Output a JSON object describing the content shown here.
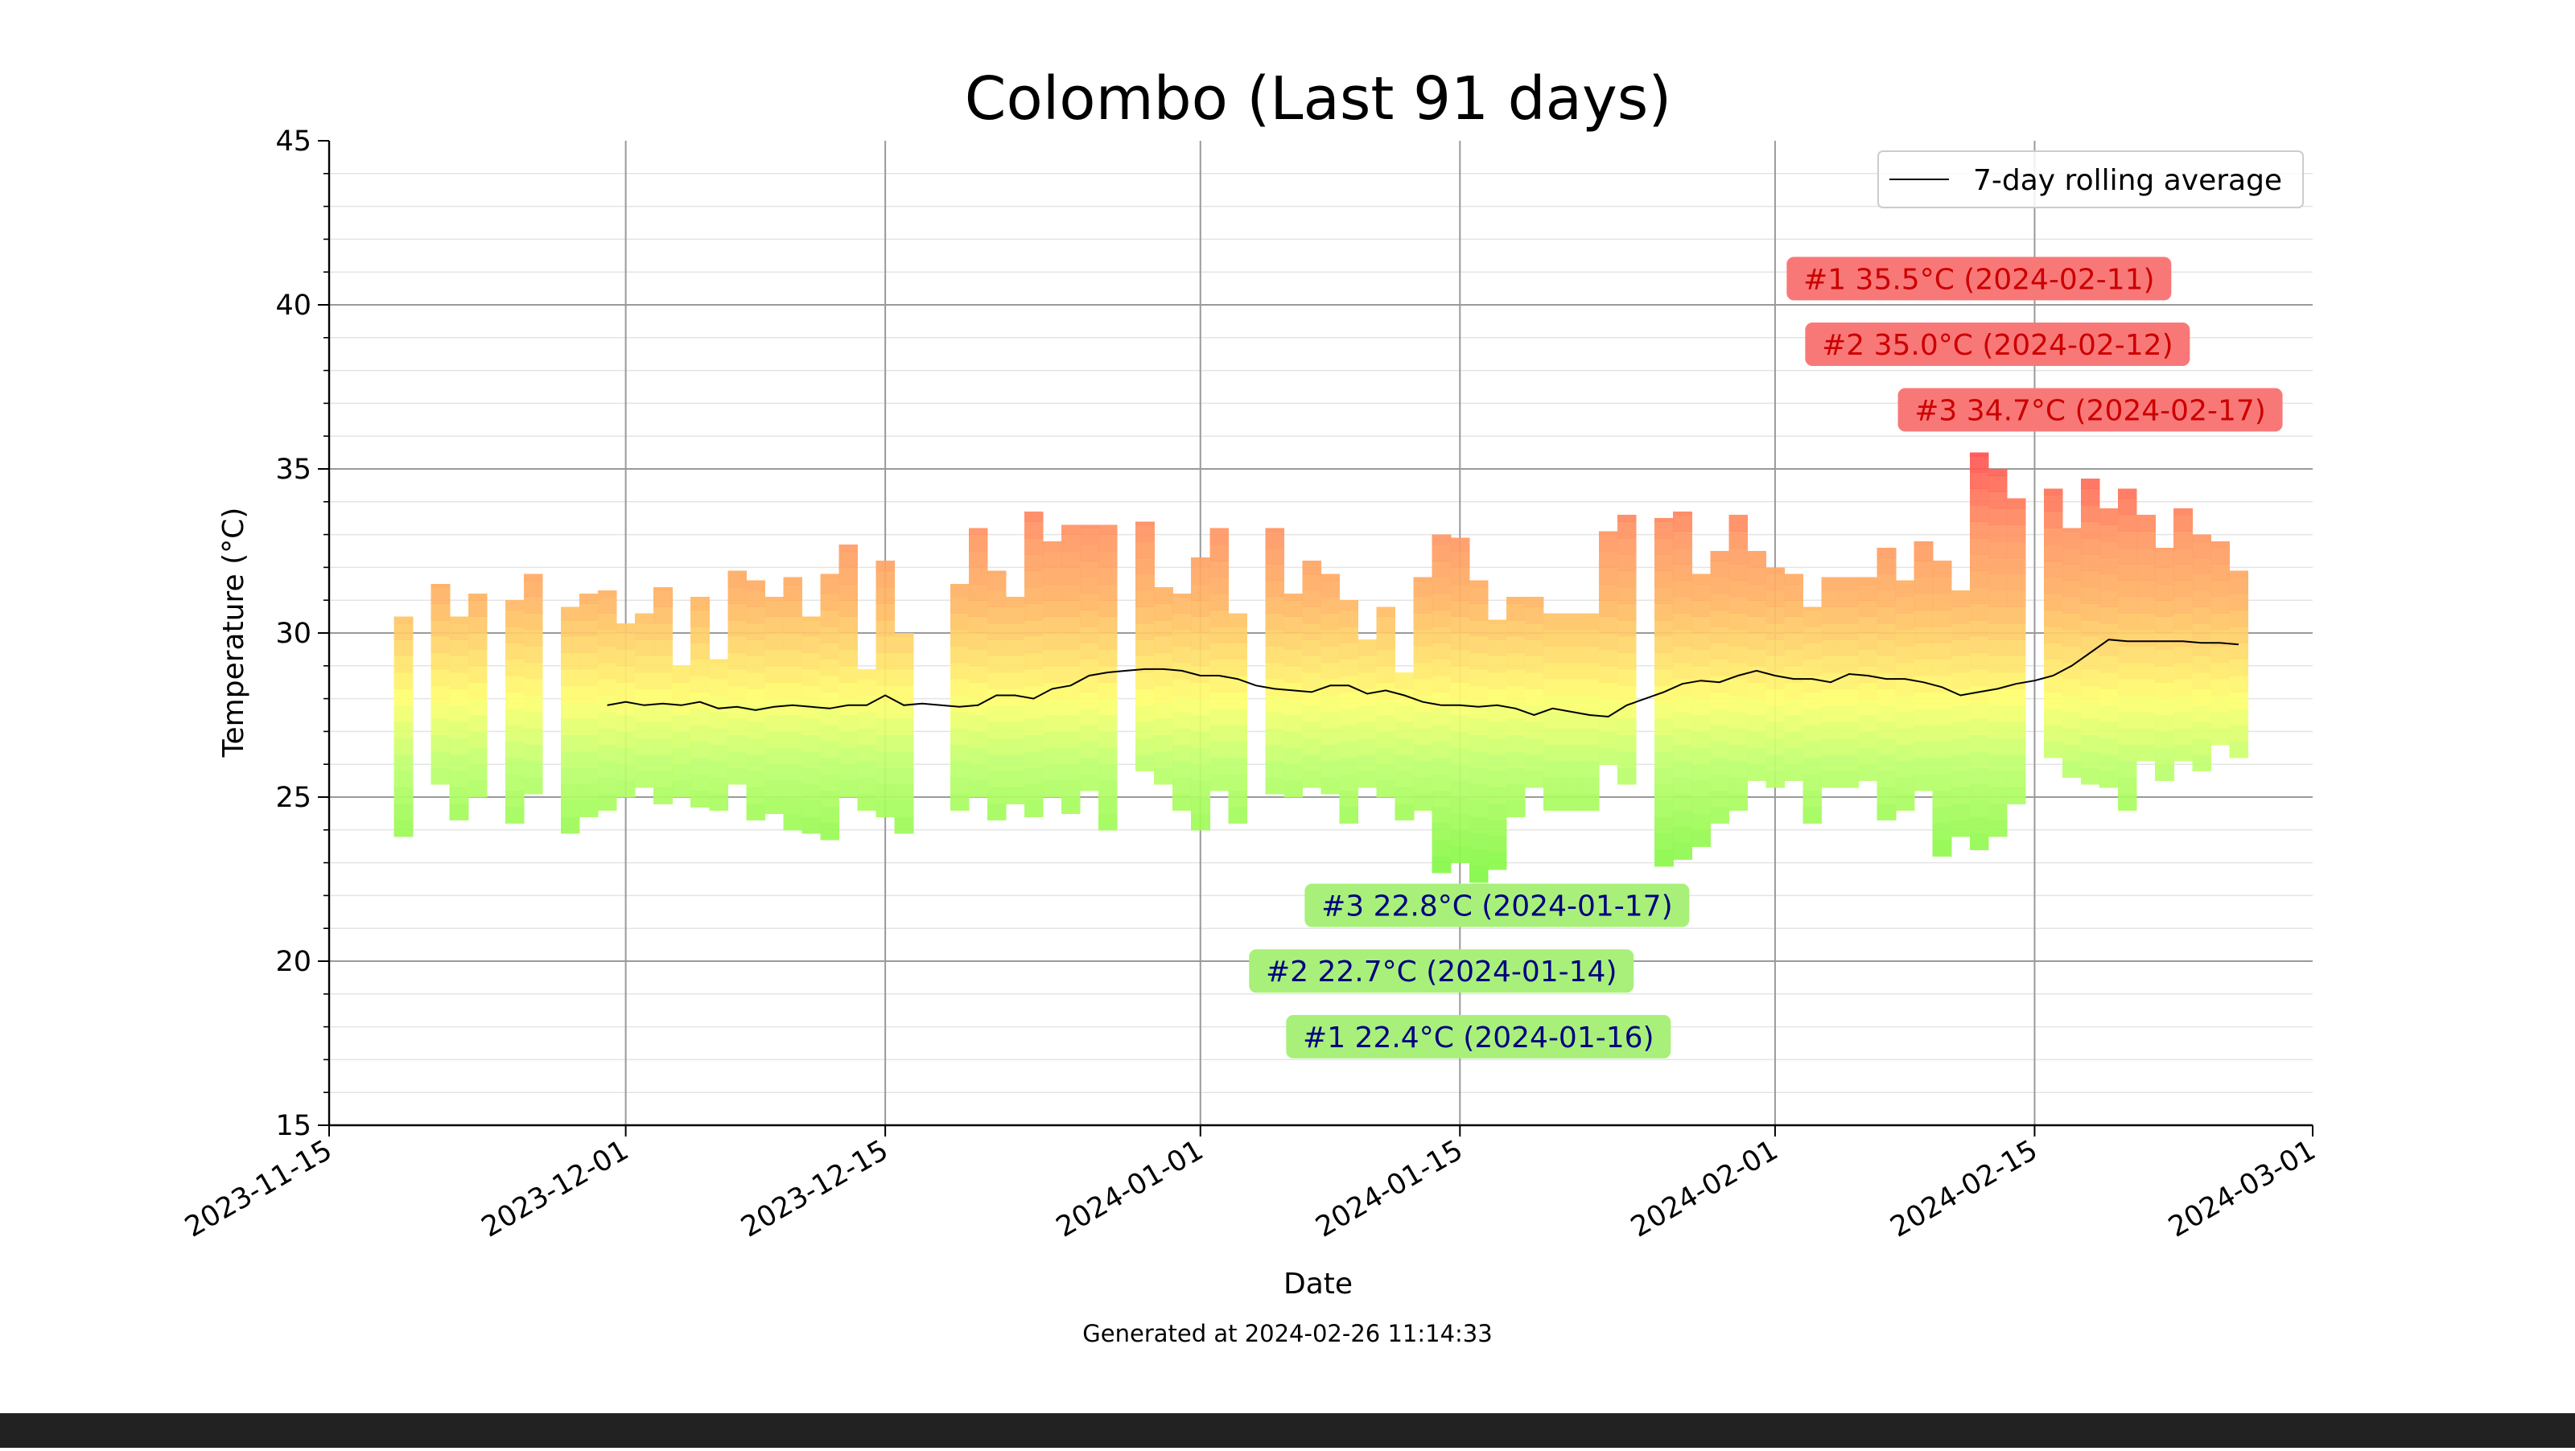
{
  "chart_data": {
    "type": "bar",
    "title": "Colombo (Last 91 days)",
    "xlabel": "Date",
    "ylabel": "Temperature (°C)",
    "xlim": [
      "2023-11-15",
      "2024-03-01"
    ],
    "ylim": [
      15,
      45
    ],
    "x_ticks": [
      "2023-11-15",
      "2023-12-01",
      "2023-12-15",
      "2024-01-01",
      "2024-01-15",
      "2024-02-01",
      "2024-02-15",
      "2024-03-01"
    ],
    "y_ticks": [
      15,
      20,
      25,
      30,
      35,
      40,
      45
    ],
    "grid": true,
    "legend": {
      "position": "top-right",
      "entries": [
        "7-day rolling average"
      ]
    },
    "bar_encoding": "daily min-to-max range, colored by temperature (green=cool, yellow=mild, orange/red=hot)",
    "daily_ranges": [
      {
        "date": "2023-11-19",
        "min": 23.8,
        "max": 30.5
      },
      {
        "date": "2023-11-21",
        "min": 25.4,
        "max": 31.5
      },
      {
        "date": "2023-11-22",
        "min": 24.3,
        "max": 30.5
      },
      {
        "date": "2023-11-23",
        "min": 25.0,
        "max": 31.2
      },
      {
        "date": "2023-11-25",
        "min": 24.2,
        "max": 31.0
      },
      {
        "date": "2023-11-26",
        "min": 25.1,
        "max": 31.8
      },
      {
        "date": "2023-11-28",
        "min": 23.9,
        "max": 30.8
      },
      {
        "date": "2023-11-29",
        "min": 24.4,
        "max": 31.2
      },
      {
        "date": "2023-11-30",
        "min": 24.6,
        "max": 31.3
      },
      {
        "date": "2023-12-01",
        "min": 25.0,
        "max": 30.3
      },
      {
        "date": "2023-12-02",
        "min": 25.3,
        "max": 30.6
      },
      {
        "date": "2023-12-03",
        "min": 24.8,
        "max": 31.4
      },
      {
        "date": "2023-12-04",
        "min": 25.0,
        "max": 29.0
      },
      {
        "date": "2023-12-05",
        "min": 24.7,
        "max": 31.1
      },
      {
        "date": "2023-12-06",
        "min": 24.6,
        "max": 29.2
      },
      {
        "date": "2023-12-07",
        "min": 25.4,
        "max": 31.9
      },
      {
        "date": "2023-12-08",
        "min": 24.3,
        "max": 31.6
      },
      {
        "date": "2023-12-09",
        "min": 24.5,
        "max": 31.1
      },
      {
        "date": "2023-12-10",
        "min": 24.0,
        "max": 31.7
      },
      {
        "date": "2023-12-11",
        "min": 23.9,
        "max": 30.5
      },
      {
        "date": "2023-12-12",
        "min": 23.7,
        "max": 31.8
      },
      {
        "date": "2023-12-13",
        "min": 25.0,
        "max": 32.7
      },
      {
        "date": "2023-12-14",
        "min": 24.6,
        "max": 28.9
      },
      {
        "date": "2023-12-15",
        "min": 24.4,
        "max": 32.2
      },
      {
        "date": "2023-12-16",
        "min": 23.9,
        "max": 30.0
      },
      {
        "date": "2023-12-19",
        "min": 24.6,
        "max": 31.5
      },
      {
        "date": "2023-12-20",
        "min": 25.0,
        "max": 33.2
      },
      {
        "date": "2023-12-21",
        "min": 24.3,
        "max": 31.9
      },
      {
        "date": "2023-12-22",
        "min": 24.8,
        "max": 31.1
      },
      {
        "date": "2023-12-23",
        "min": 24.4,
        "max": 33.7
      },
      {
        "date": "2023-12-24",
        "min": 25.0,
        "max": 32.8
      },
      {
        "date": "2023-12-25",
        "min": 24.5,
        "max": 33.3
      },
      {
        "date": "2023-12-26",
        "min": 25.2,
        "max": 33.3
      },
      {
        "date": "2023-12-27",
        "min": 24.0,
        "max": 33.3
      },
      {
        "date": "2023-12-29",
        "min": 25.8,
        "max": 33.4
      },
      {
        "date": "2023-12-30",
        "min": 25.4,
        "max": 31.4
      },
      {
        "date": "2023-12-31",
        "min": 24.6,
        "max": 31.2
      },
      {
        "date": "2024-01-01",
        "min": 24.0,
        "max": 32.3
      },
      {
        "date": "2024-01-02",
        "min": 25.2,
        "max": 33.2
      },
      {
        "date": "2024-01-03",
        "min": 24.2,
        "max": 30.6
      },
      {
        "date": "2024-01-05",
        "min": 25.1,
        "max": 33.2
      },
      {
        "date": "2024-01-06",
        "min": 25.0,
        "max": 31.2
      },
      {
        "date": "2024-01-07",
        "min": 25.3,
        "max": 32.2
      },
      {
        "date": "2024-01-08",
        "min": 25.1,
        "max": 31.8
      },
      {
        "date": "2024-01-09",
        "min": 24.2,
        "max": 31.0
      },
      {
        "date": "2024-01-10",
        "min": 25.3,
        "max": 29.8
      },
      {
        "date": "2024-01-11",
        "min": 25.0,
        "max": 30.8
      },
      {
        "date": "2024-01-12",
        "min": 24.3,
        "max": 28.8
      },
      {
        "date": "2024-01-13",
        "min": 24.6,
        "max": 31.7
      },
      {
        "date": "2024-01-14",
        "min": 22.7,
        "max": 33.0
      },
      {
        "date": "2024-01-15",
        "min": 23.0,
        "max": 32.9
      },
      {
        "date": "2024-01-16",
        "min": 22.4,
        "max": 31.6
      },
      {
        "date": "2024-01-17",
        "min": 22.8,
        "max": 30.4
      },
      {
        "date": "2024-01-18",
        "min": 24.4,
        "max": 31.1
      },
      {
        "date": "2024-01-19",
        "min": 25.3,
        "max": 31.1
      },
      {
        "date": "2024-01-20",
        "min": 24.6,
        "max": 30.6
      },
      {
        "date": "2024-01-21",
        "min": 24.6,
        "max": 30.6
      },
      {
        "date": "2024-01-22",
        "min": 24.6,
        "max": 30.6
      },
      {
        "date": "2024-01-23",
        "min": 26.0,
        "max": 33.1
      },
      {
        "date": "2024-01-24",
        "min": 25.4,
        "max": 33.6
      },
      {
        "date": "2024-01-26",
        "min": 22.9,
        "max": 33.5
      },
      {
        "date": "2024-01-27",
        "min": 23.1,
        "max": 33.7
      },
      {
        "date": "2024-01-28",
        "min": 23.5,
        "max": 31.8
      },
      {
        "date": "2024-01-29",
        "min": 24.2,
        "max": 32.5
      },
      {
        "date": "2024-01-30",
        "min": 24.6,
        "max": 33.6
      },
      {
        "date": "2024-01-31",
        "min": 25.5,
        "max": 32.5
      },
      {
        "date": "2024-02-01",
        "min": 25.3,
        "max": 32.0
      },
      {
        "date": "2024-02-02",
        "min": 25.5,
        "max": 31.8
      },
      {
        "date": "2024-02-03",
        "min": 24.2,
        "max": 30.8
      },
      {
        "date": "2024-02-04",
        "min": 25.3,
        "max": 31.7
      },
      {
        "date": "2024-02-05",
        "min": 25.3,
        "max": 31.7
      },
      {
        "date": "2024-02-06",
        "min": 25.5,
        "max": 31.7
      },
      {
        "date": "2024-02-07",
        "min": 24.3,
        "max": 32.6
      },
      {
        "date": "2024-02-08",
        "min": 24.6,
        "max": 31.6
      },
      {
        "date": "2024-02-09",
        "min": 25.2,
        "max": 32.8
      },
      {
        "date": "2024-02-10",
        "min": 23.2,
        "max": 32.2
      },
      {
        "date": "2024-02-11",
        "min": 23.8,
        "max": 31.3
      },
      {
        "date": "2024-02-12",
        "min": 23.4,
        "max": 35.5
      },
      {
        "date": "2024-02-13",
        "min": 23.8,
        "max": 35.0
      },
      {
        "date": "2024-02-14",
        "min": 24.8,
        "max": 34.1
      },
      {
        "date": "2024-02-16",
        "min": 26.2,
        "max": 34.4
      },
      {
        "date": "2024-02-17",
        "min": 25.6,
        "max": 33.2
      },
      {
        "date": "2024-02-18",
        "min": 25.4,
        "max": 34.7
      },
      {
        "date": "2024-02-19",
        "min": 25.3,
        "max": 33.8
      },
      {
        "date": "2024-02-20",
        "min": 24.6,
        "max": 34.4
      },
      {
        "date": "2024-02-21",
        "min": 26.1,
        "max": 33.6
      },
      {
        "date": "2024-02-22",
        "min": 25.5,
        "max": 32.6
      },
      {
        "date": "2024-02-23",
        "min": 26.1,
        "max": 33.8
      },
      {
        "date": "2024-02-24",
        "min": 25.8,
        "max": 33.0
      },
      {
        "date": "2024-02-25",
        "min": 26.6,
        "max": 32.8
      },
      {
        "date": "2024-02-26",
        "min": 26.2,
        "max": 31.9
      }
    ],
    "series": [
      {
        "name": "7-day rolling average",
        "color": "#000000",
        "points": [
          [
            "2023-11-30",
            27.8
          ],
          [
            "2023-12-01",
            27.9
          ],
          [
            "2023-12-02",
            27.8
          ],
          [
            "2023-12-03",
            27.85
          ],
          [
            "2023-12-04",
            27.8
          ],
          [
            "2023-12-05",
            27.9
          ],
          [
            "2023-12-06",
            27.7
          ],
          [
            "2023-12-07",
            27.75
          ],
          [
            "2023-12-08",
            27.65
          ],
          [
            "2023-12-09",
            27.75
          ],
          [
            "2023-12-10",
            27.8
          ],
          [
            "2023-12-11",
            27.75
          ],
          [
            "2023-12-12",
            27.7
          ],
          [
            "2023-12-13",
            27.8
          ],
          [
            "2023-12-14",
            27.8
          ],
          [
            "2023-12-15",
            28.1
          ],
          [
            "2023-12-16",
            27.8
          ],
          [
            "2023-12-17",
            27.85
          ],
          [
            "2023-12-18",
            27.8
          ],
          [
            "2023-12-19",
            27.75
          ],
          [
            "2023-12-20",
            27.8
          ],
          [
            "2023-12-21",
            28.1
          ],
          [
            "2023-12-22",
            28.1
          ],
          [
            "2023-12-23",
            28.0
          ],
          [
            "2023-12-24",
            28.3
          ],
          [
            "2023-12-25",
            28.4
          ],
          [
            "2023-12-26",
            28.7
          ],
          [
            "2023-12-27",
            28.8
          ],
          [
            "2023-12-28",
            28.85
          ],
          [
            "2023-12-29",
            28.9
          ],
          [
            "2023-12-30",
            28.9
          ],
          [
            "2023-12-31",
            28.85
          ],
          [
            "2024-01-01",
            28.7
          ],
          [
            "2024-01-02",
            28.7
          ],
          [
            "2024-01-03",
            28.6
          ],
          [
            "2024-01-04",
            28.4
          ],
          [
            "2024-01-05",
            28.3
          ],
          [
            "2024-01-06",
            28.25
          ],
          [
            "2024-01-07",
            28.2
          ],
          [
            "2024-01-08",
            28.4
          ],
          [
            "2024-01-09",
            28.4
          ],
          [
            "2024-01-10",
            28.15
          ],
          [
            "2024-01-11",
            28.25
          ],
          [
            "2024-01-12",
            28.1
          ],
          [
            "2024-01-13",
            27.9
          ],
          [
            "2024-01-14",
            27.8
          ],
          [
            "2024-01-15",
            27.8
          ],
          [
            "2024-01-16",
            27.75
          ],
          [
            "2024-01-17",
            27.8
          ],
          [
            "2024-01-18",
            27.7
          ],
          [
            "2024-01-19",
            27.5
          ],
          [
            "2024-01-20",
            27.7
          ],
          [
            "2024-01-21",
            27.6
          ],
          [
            "2024-01-22",
            27.5
          ],
          [
            "2024-01-23",
            27.45
          ],
          [
            "2024-01-24",
            27.8
          ],
          [
            "2024-01-25",
            28.0
          ],
          [
            "2024-01-26",
            28.2
          ],
          [
            "2024-01-27",
            28.45
          ],
          [
            "2024-01-28",
            28.55
          ],
          [
            "2024-01-29",
            28.5
          ],
          [
            "2024-01-30",
            28.7
          ],
          [
            "2024-01-31",
            28.85
          ],
          [
            "2024-02-01",
            28.7
          ],
          [
            "2024-02-02",
            28.6
          ],
          [
            "2024-02-03",
            28.6
          ],
          [
            "2024-02-04",
            28.5
          ],
          [
            "2024-02-05",
            28.75
          ],
          [
            "2024-02-06",
            28.7
          ],
          [
            "2024-02-07",
            28.6
          ],
          [
            "2024-02-08",
            28.6
          ],
          [
            "2024-02-09",
            28.5
          ],
          [
            "2024-02-10",
            28.35
          ],
          [
            "2024-02-11",
            28.1
          ],
          [
            "2024-02-12",
            28.2
          ],
          [
            "2024-02-13",
            28.3
          ],
          [
            "2024-02-14",
            28.45
          ],
          [
            "2024-02-15",
            28.55
          ],
          [
            "2024-02-16",
            28.7
          ],
          [
            "2024-02-17",
            29.0
          ],
          [
            "2024-02-18",
            29.4
          ],
          [
            "2024-02-19",
            29.8
          ],
          [
            "2024-02-20",
            29.75
          ],
          [
            "2024-02-21",
            29.75
          ],
          [
            "2024-02-22",
            29.75
          ],
          [
            "2024-02-23",
            29.75
          ],
          [
            "2024-02-24",
            29.7
          ],
          [
            "2024-02-25",
            29.7
          ],
          [
            "2024-02-26",
            29.65
          ]
        ]
      }
    ],
    "annotations": [
      {
        "text": "#1 35.5°C (2024-02-11)",
        "kind": "hot",
        "box_color": "#f87878",
        "text_color": "#cc0000",
        "anchor_date": "2024-02-12",
        "anchor_value": 40.8
      },
      {
        "text": "#2 35.0°C (2024-02-12)",
        "kind": "hot",
        "box_color": "#f87878",
        "text_color": "#cc0000",
        "anchor_date": "2024-02-13",
        "anchor_value": 38.8
      },
      {
        "text": "#3 34.7°C (2024-02-17)",
        "kind": "hot",
        "box_color": "#f87878",
        "text_color": "#cc0000",
        "anchor_date": "2024-02-18",
        "anchor_value": 36.8
      },
      {
        "text": "#3 22.8°C (2024-01-17)",
        "kind": "cold",
        "box_color": "#a8f07a",
        "text_color": "#000080",
        "anchor_date": "2024-01-17",
        "anchor_value": 21.7
      },
      {
        "text": "#2 22.7°C (2024-01-14)",
        "kind": "cold",
        "box_color": "#a8f07a",
        "text_color": "#000080",
        "anchor_date": "2024-01-14",
        "anchor_value": 19.7
      },
      {
        "text": "#1 22.4°C (2024-01-16)",
        "kind": "cold",
        "box_color": "#a8f07a",
        "text_color": "#000080",
        "anchor_date": "2024-01-16",
        "anchor_value": 17.7
      }
    ],
    "footer": "Generated at 2024-02-26 11:14:33"
  }
}
